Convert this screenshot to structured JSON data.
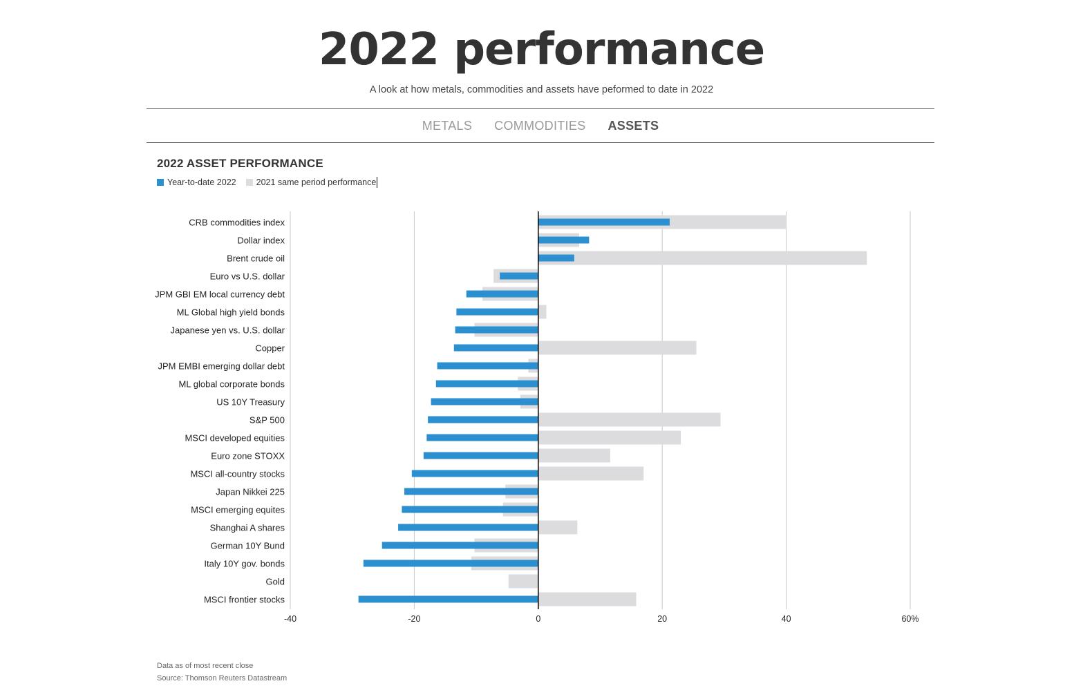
{
  "header": {
    "title": "2022 performance",
    "subtitle": "A look at how metals, commodities and assets have peformed to date in 2022"
  },
  "tabs": [
    {
      "label": "METALS",
      "active": false
    },
    {
      "label": "COMMODITIES",
      "active": false
    },
    {
      "label": "ASSETS",
      "active": true
    }
  ],
  "colors": {
    "ytd": "#2b8fd0",
    "prior": "#dcdcde",
    "grid": "#c8c8c8",
    "zero": "#111111"
  },
  "legend": {
    "ytd_label": "Year-to-date 2022",
    "prior_label": "2021 same period performance"
  },
  "chart_data": {
    "type": "bar",
    "orientation": "horizontal",
    "title": "2022 ASSET PERFORMANCE",
    "categories": [
      "CRB commodities index",
      "Dollar index",
      "Brent crude oil",
      "Euro vs U.S. dollar",
      "JPM GBI EM local currency debt",
      "ML Global high yield bonds",
      "Japanese yen vs. U.S. dollar",
      "Copper",
      "JPM EMBI emerging dollar debt",
      "ML global corporate bonds",
      "US 10Y Treasury",
      "S&P 500",
      "MSCI developed equities",
      "Euro zone STOXX",
      "MSCI all-country stocks",
      "Japan Nikkei 225",
      "MSCI emerging equites",
      "Shanghai A shares",
      "German 10Y Bund",
      "Italy 10Y gov. bonds",
      "Gold",
      "MSCI frontier stocks"
    ],
    "series": [
      {
        "name": "Year-to-date 2022",
        "values": [
          21.2,
          8.2,
          5.8,
          -6.2,
          -11.6,
          -13.2,
          -13.4,
          -13.6,
          -16.3,
          -16.5,
          -17.3,
          -17.8,
          -18.0,
          -18.5,
          -20.4,
          -21.6,
          -22.0,
          -22.6,
          -25.2,
          -28.2,
          0,
          -29.0
        ]
      },
      {
        "name": "2021 same period performance",
        "values": [
          40.0,
          6.6,
          53.0,
          -7.2,
          -9.0,
          1.3,
          -10.3,
          25.5,
          -1.6,
          -3.3,
          -2.9,
          29.4,
          23.0,
          11.6,
          17.0,
          -5.3,
          -5.7,
          6.3,
          -10.3,
          -10.8,
          -4.8,
          15.8
        ]
      }
    ],
    "xlim": [
      -40,
      60
    ],
    "xticks": [
      -40,
      -20,
      0,
      20,
      40,
      60
    ],
    "xtick_labels": [
      "-40",
      "-20",
      "0",
      "20",
      "40",
      "60%"
    ],
    "grid": true
  },
  "footer": {
    "note": "Data as of most recent close",
    "source": "Source: Thomson Reuters Datastream"
  }
}
